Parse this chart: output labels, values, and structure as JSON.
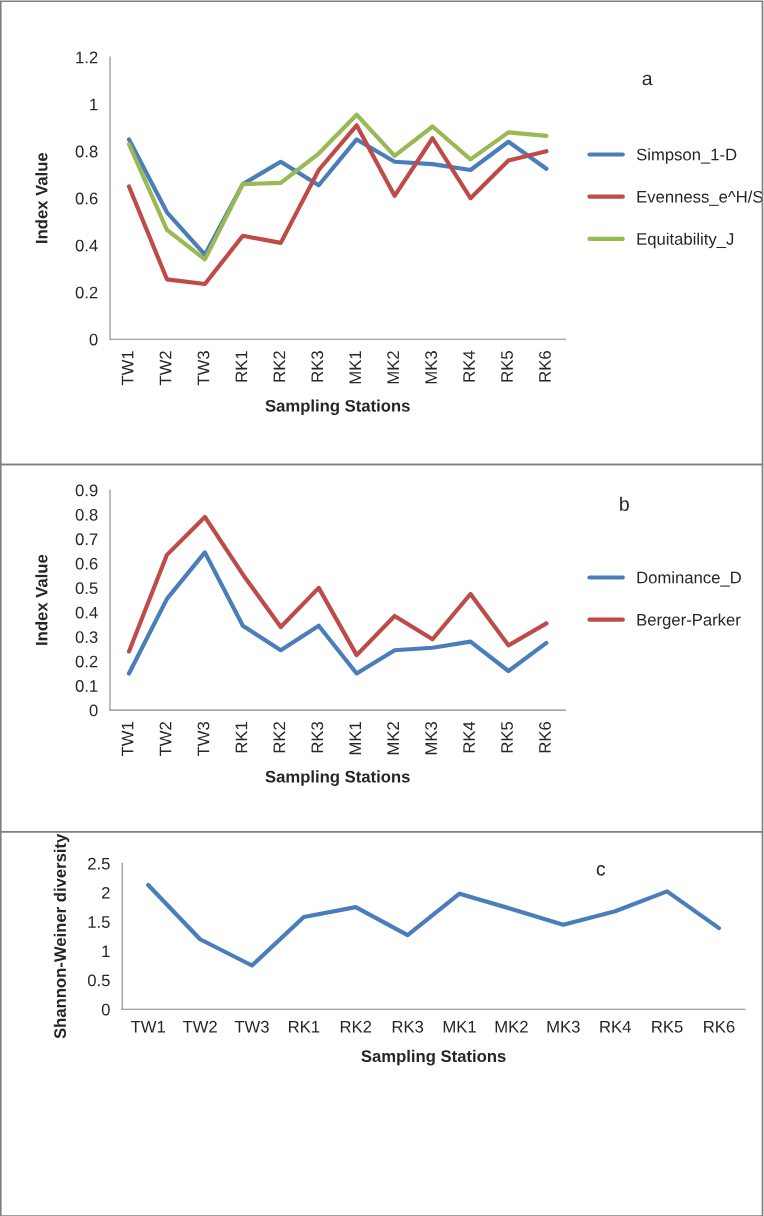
{
  "chart_data": [
    {
      "type": "line",
      "xlabel": "Sampling Stations",
      "ylabel": "Index Value",
      "annotations": [
        "a"
      ],
      "categories": [
        "TW1",
        "TW2",
        "TW3",
        "RK1",
        "RK2",
        "RK3",
        "MK1",
        "MK2",
        "MK3",
        "RK4",
        "RK5",
        "RK6"
      ],
      "ylim": [
        0,
        1.2
      ],
      "yticks": [
        0,
        0.2,
        0.4,
        0.6,
        0.8,
        1,
        1.2
      ],
      "grid": false,
      "legend": "right",
      "series": [
        {
          "name": "Simpson_1-D",
          "color": "#4a7ebb",
          "values": [
            0.85,
            0.54,
            0.36,
            0.66,
            0.755,
            0.655,
            0.85,
            0.755,
            0.745,
            0.72,
            0.84,
            0.725
          ]
        },
        {
          "name": "Evenness_e^H/S",
          "color": "#be4b48",
          "values": [
            0.65,
            0.255,
            0.235,
            0.44,
            0.41,
            0.72,
            0.91,
            0.61,
            0.855,
            0.6,
            0.76,
            0.8
          ]
        },
        {
          "name": "Equitability_J",
          "color": "#98b954",
          "values": [
            0.83,
            0.465,
            0.34,
            0.66,
            0.665,
            0.79,
            0.955,
            0.78,
            0.905,
            0.765,
            0.88,
            0.865
          ]
        }
      ]
    },
    {
      "type": "line",
      "xlabel": "Sampling Stations",
      "ylabel": "Index Value",
      "annotations": [
        "b"
      ],
      "categories": [
        "TW1",
        "TW2",
        "TW3",
        "RK1",
        "RK2",
        "RK3",
        "MK1",
        "MK2",
        "MK3",
        "RK4",
        "RK5",
        "RK6"
      ],
      "ylim": [
        0,
        0.9
      ],
      "yticks": [
        0,
        0.1,
        0.2,
        0.3,
        0.4,
        0.5,
        0.6,
        0.7,
        0.8,
        0.9
      ],
      "grid": false,
      "legend": "right",
      "series": [
        {
          "name": "Dominance_D",
          "color": "#4a7ebb",
          "values": [
            0.15,
            0.455,
            0.645,
            0.345,
            0.245,
            0.345,
            0.15,
            0.245,
            0.255,
            0.28,
            0.16,
            0.275
          ]
        },
        {
          "name": "Berger-Parker",
          "color": "#be4b48",
          "values": [
            0.24,
            0.635,
            0.79,
            0.555,
            0.34,
            0.5,
            0.225,
            0.385,
            0.29,
            0.475,
            0.265,
            0.355
          ]
        }
      ]
    },
    {
      "type": "line",
      "xlabel": "Sampling Stations",
      "ylabel": "Shannon-Weiner diversity",
      "annotations": [
        "c"
      ],
      "categories": [
        "TW1",
        "TW2",
        "TW3",
        "RK1",
        "RK2",
        "RK3",
        "MK1",
        "MK2",
        "MK3",
        "RK4",
        "RK5",
        "RK6"
      ],
      "ylim": [
        0,
        2.5
      ],
      "yticks": [
        0,
        0.5,
        1,
        1.5,
        2,
        2.5
      ],
      "grid": false,
      "series": [
        {
          "color": "#4a7ebb",
          "values": [
            2.13,
            1.2,
            0.75,
            1.58,
            1.75,
            1.27,
            1.98,
            1.72,
            1.45,
            1.68,
            2.02,
            1.39
          ]
        }
      ]
    }
  ]
}
